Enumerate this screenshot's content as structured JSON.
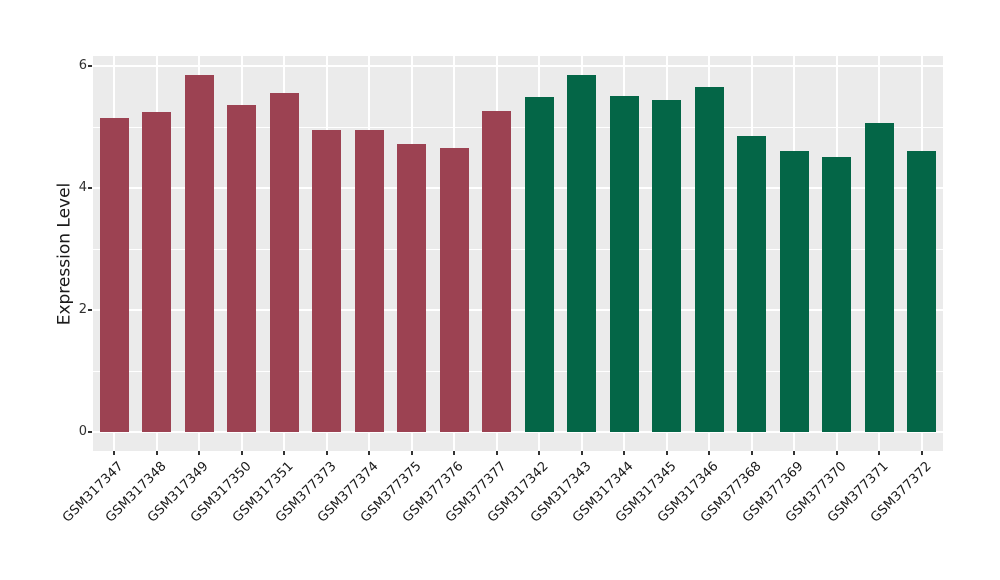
{
  "figure": {
    "background": "#FFFFFF",
    "panel_background": "#EBEBEB",
    "grid_color": "#FFFFFF",
    "tick_mark_color": "#333333",
    "axis_text_color": "#1A1A1A"
  },
  "chart_data": {
    "type": "bar",
    "title": "",
    "xlabel": "",
    "ylabel": "Expression Level",
    "ylim": [
      0,
      6.45
    ],
    "yticks": [
      0,
      2,
      4,
      6
    ],
    "yticks_minor": [
      1,
      3,
      5
    ],
    "grid": "on",
    "legend_position": "none",
    "x_tick_angle_degrees": 45,
    "categories": [
      "GSM317347",
      "GSM317348",
      "GSM317349",
      "GSM317350",
      "GSM317351",
      "GSM377373",
      "GSM377374",
      "GSM377375",
      "GSM377376",
      "GSM377377",
      "GSM317342",
      "GSM317343",
      "GSM317344",
      "GSM317345",
      "GSM317346",
      "GSM377368",
      "GSM377369",
      "GSM377370",
      "GSM377371",
      "GSM377372"
    ],
    "series": [
      {
        "name": "dark-red-group",
        "color": "#9C4252",
        "categories": [
          "GSM317347",
          "GSM317348",
          "GSM317349",
          "GSM317350",
          "GSM317351",
          "GSM377373",
          "GSM377374",
          "GSM377375",
          "GSM377376",
          "GSM377377"
        ],
        "values": [
          5.15,
          5.25,
          5.85,
          5.36,
          5.56,
          4.95,
          4.95,
          4.72,
          4.66,
          5.26
        ]
      },
      {
        "name": "dark-green-group",
        "color": "#046647",
        "categories": [
          "GSM317342",
          "GSM317343",
          "GSM317344",
          "GSM317345",
          "GSM317346",
          "GSM377368",
          "GSM377369",
          "GSM377370",
          "GSM377371",
          "GSM377372"
        ],
        "values": [
          5.49,
          5.85,
          5.51,
          5.44,
          5.65,
          4.86,
          4.6,
          4.51,
          5.07,
          4.6
        ]
      }
    ]
  }
}
